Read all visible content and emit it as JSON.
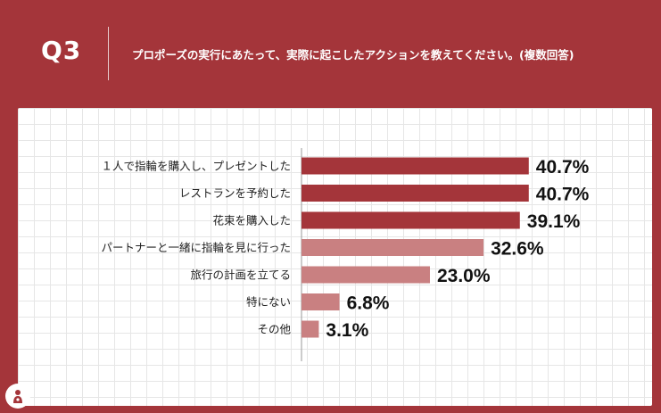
{
  "header": {
    "question_label": "Q3",
    "question_text": "プロポーズの実行にあたって、実際に起こしたアクションを教えてください。(複数回答)"
  },
  "colors": {
    "background": "#a4353a",
    "bar_dark": "#a4353a",
    "bar_light": "#c98081"
  },
  "logo": {
    "icon": "brand-logo-icon"
  },
  "chart_data": {
    "type": "bar",
    "orientation": "horizontal",
    "categories": [
      "１人で指輪を購入し、プレゼントした",
      "レストランを予約した",
      "花束を購入した",
      "パートナーと一緒に指輪を見に行った",
      "旅行の計画を立てる",
      "特にない",
      "その他"
    ],
    "values": [
      40.7,
      40.7,
      39.1,
      32.6,
      23.0,
      6.8,
      3.1
    ],
    "value_labels": [
      "40.7%",
      "40.7%",
      "39.1%",
      "32.6%",
      "23.0%",
      "6.8%",
      "3.1%"
    ],
    "bar_colors": [
      "#a4353a",
      "#a4353a",
      "#a4353a",
      "#c98081",
      "#c98081",
      "#c98081",
      "#c98081"
    ],
    "xlim": [
      0,
      100
    ],
    "unit": "%",
    "grid": true,
    "legend": "none"
  }
}
